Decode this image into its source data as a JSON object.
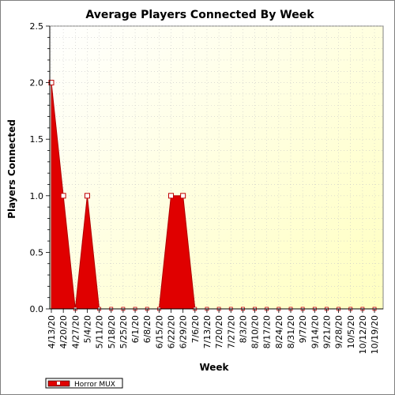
{
  "chart_data": {
    "type": "area",
    "title": "Average Players Connected By Week",
    "xlabel": "Week",
    "ylabel": "Players Connected",
    "ylim": [
      0,
      2.5
    ],
    "yticks": [
      "0.0",
      "0.5",
      "1.0",
      "1.5",
      "2.0",
      "2.5"
    ],
    "grid": true,
    "legend_position": "bottom-left",
    "categories": [
      "4/13/20",
      "4/20/20",
      "4/27/20",
      "5/4/20",
      "5/11/20",
      "5/18/20",
      "5/25/20",
      "6/1/20",
      "6/8/20",
      "6/15/20",
      "6/22/20",
      "6/29/20",
      "7/6/20",
      "7/13/20",
      "7/20/20",
      "7/27/20",
      "8/3/20",
      "8/10/20",
      "8/17/20",
      "8/24/20",
      "8/31/20",
      "9/7/20",
      "9/14/20",
      "9/21/20",
      "9/28/20",
      "10/5/20",
      "10/12/20",
      "10/19/20"
    ],
    "series": [
      {
        "name": "Horror MUX",
        "color": "#e00000",
        "values": [
          2,
          1,
          0,
          1,
          0,
          0,
          0,
          0,
          0,
          0,
          1,
          1,
          0,
          0,
          0,
          0,
          0,
          0,
          0,
          0,
          0,
          0,
          0,
          0,
          0,
          0,
          0,
          0
        ]
      }
    ]
  },
  "colors": {
    "plot_bg_top_left": "#ffffff",
    "plot_bg_bottom_right": "#ffffc0",
    "series_fill": "#e00000"
  }
}
